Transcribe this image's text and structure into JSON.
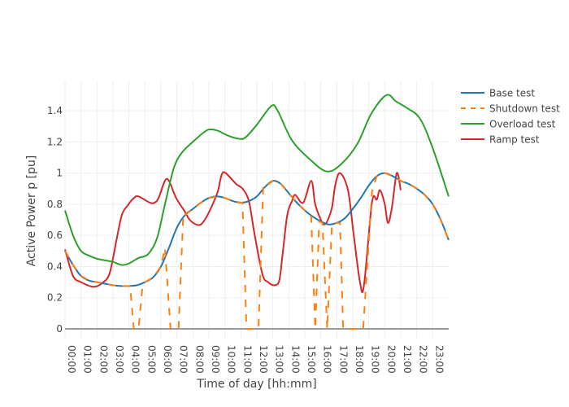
{
  "chart_data": {
    "type": "line",
    "xlabel": "Time of day [hh:mm]",
    "ylabel": "Active Power p [pu]",
    "xlim": [
      0,
      24
    ],
    "ylim": [
      -0.07,
      1.55
    ],
    "xticks": [
      "00:00",
      "01:00",
      "02:00",
      "03:00",
      "04:00",
      "05:00",
      "06:00",
      "07:00",
      "08:00",
      "09:00",
      "10:00",
      "11:00",
      "12:00",
      "13:00",
      "14:00",
      "15:00",
      "16:00",
      "17:00",
      "18:00",
      "19:00",
      "20:00",
      "21:00",
      "22:00",
      "23:00"
    ],
    "yticks": [
      0,
      0.2,
      0.4,
      0.6,
      0.8,
      1,
      1.2,
      1.4
    ],
    "ytick_labels": [
      "0",
      "0.2",
      "0.4",
      "0.6",
      "0.8",
      "1",
      "1.2",
      "1.4"
    ],
    "grid": true,
    "legend_position": "right",
    "series": [
      {
        "name": "Base test",
        "color": "#1f77b4",
        "dash": "solid",
        "x": [
          0,
          0.5,
          1,
          1.5,
          2,
          2.5,
          3,
          3.5,
          4,
          4.5,
          5,
          5.5,
          6,
          6.5,
          7,
          7.5,
          8,
          8.5,
          9,
          9.5,
          10,
          10.5,
          11,
          11.5,
          12,
          12.5,
          13,
          13.5,
          14,
          14.5,
          15,
          15.5,
          16,
          16.5,
          17,
          17.5,
          18,
          18.5,
          19,
          19.5,
          20,
          20.5,
          21,
          21.5,
          22,
          22.5,
          23,
          23.5,
          24
        ],
        "y": [
          0.5,
          0.41,
          0.34,
          0.31,
          0.3,
          0.29,
          0.28,
          0.275,
          0.275,
          0.28,
          0.3,
          0.33,
          0.4,
          0.52,
          0.65,
          0.73,
          0.77,
          0.81,
          0.84,
          0.85,
          0.84,
          0.82,
          0.81,
          0.82,
          0.85,
          0.91,
          0.95,
          0.93,
          0.87,
          0.81,
          0.76,
          0.72,
          0.69,
          0.67,
          0.68,
          0.71,
          0.77,
          0.84,
          0.92,
          0.98,
          1.0,
          0.98,
          0.95,
          0.93,
          0.9,
          0.86,
          0.8,
          0.7,
          0.57
        ]
      },
      {
        "name": "Shutdown test",
        "color": "#ff7f0e",
        "dash": "dash",
        "x": [
          0,
          0.5,
          1,
          1.5,
          2,
          2.5,
          3,
          3.5,
          4,
          4.07,
          4.3,
          4.6,
          4.85,
          5,
          5.5,
          6,
          6.25,
          6.6,
          7.1,
          7.4,
          7.5,
          8,
          8.5,
          9,
          9.5,
          10,
          10.5,
          11,
          11.1,
          11.35,
          12.1,
          12.4,
          12.5,
          13,
          13.5,
          14,
          14.5,
          15,
          15.4,
          15.65,
          15.9,
          16.1,
          16.4,
          16.7,
          17,
          17.2,
          17.4,
          18.65,
          19.2,
          19.5,
          20,
          20.5,
          21,
          21.5,
          22,
          22.5,
          23,
          23.5,
          24
        ],
        "y": [
          0.5,
          0.41,
          0.34,
          0.31,
          0.3,
          0.29,
          0.28,
          0.275,
          0.275,
          0.275,
          0,
          0,
          0.28,
          0.3,
          0.33,
          0.4,
          0.52,
          0,
          0,
          0.74,
          0.73,
          0.77,
          0.81,
          0.84,
          0.85,
          0.84,
          0.82,
          0.81,
          0.81,
          0,
          0,
          0.92,
          0.91,
          0.95,
          0.93,
          0.87,
          0.81,
          0.76,
          0.72,
          0,
          0.69,
          0.68,
          0,
          0.68,
          0.68,
          0.68,
          0,
          0,
          0.88,
          0.98,
          1.0,
          0.98,
          0.95,
          0.93,
          0.9,
          0.86,
          0.8,
          0.7,
          0.57
        ]
      },
      {
        "name": "Overload test",
        "color": "#2ca02c",
        "dash": "solid",
        "x": [
          0,
          0.5,
          1,
          1.5,
          2,
          2.5,
          3,
          3.55,
          4,
          4.6,
          5.2,
          5.75,
          6.25,
          6.8,
          7.3,
          8.1,
          8.8,
          9.15,
          9.6,
          10.2,
          10.9,
          11.3,
          12,
          12.9,
          13.3,
          14.2,
          15.4,
          16.4,
          17.3,
          18.3,
          19.15,
          20.1,
          20.7,
          21.35,
          22.2,
          23,
          24
        ],
        "y": [
          0.76,
          0.6,
          0.5,
          0.47,
          0.45,
          0.44,
          0.43,
          0.41,
          0.42,
          0.455,
          0.48,
          0.58,
          0.8,
          1.03,
          1.13,
          1.21,
          1.27,
          1.28,
          1.27,
          1.24,
          1.22,
          1.23,
          1.31,
          1.43,
          1.4,
          1.21,
          1.08,
          1.01,
          1.06,
          1.19,
          1.38,
          1.5,
          1.46,
          1.42,
          1.35,
          1.16,
          0.85
        ]
      },
      {
        "name": "Ramp test",
        "color": "#d62728",
        "dash": "solid",
        "x": [
          0,
          0.5,
          1,
          1.8,
          2.4,
          2.8,
          3.2,
          3.55,
          3.9,
          4.3,
          4.6,
          5.3,
          5.6,
          5.85,
          6.25,
          6.5,
          6.95,
          7.45,
          7.8,
          8.2,
          8.5,
          8.8,
          9.15,
          9.55,
          9.8,
          10.05,
          10.7,
          11.1,
          11.5,
          11.85,
          12.35,
          12.7,
          13.1,
          13.4,
          13.6,
          13.9,
          14.2,
          14.4,
          14.9,
          15.4,
          15.65,
          16.0,
          16.2,
          16.4,
          16.7,
          16.9,
          17.2,
          17.7,
          18.05,
          18.45,
          18.7,
          19.2,
          19.5,
          19.7,
          20.0,
          20.2,
          20.45,
          20.75,
          21.0
        ],
        "y": [
          0.51,
          0.34,
          0.3,
          0.27,
          0.3,
          0.36,
          0.56,
          0.73,
          0.79,
          0.84,
          0.85,
          0.81,
          0.81,
          0.84,
          0.95,
          0.95,
          0.84,
          0.76,
          0.7,
          0.67,
          0.67,
          0.71,
          0.78,
          0.88,
          0.99,
          1.0,
          0.93,
          0.9,
          0.82,
          0.61,
          0.35,
          0.3,
          0.28,
          0.31,
          0.47,
          0.73,
          0.82,
          0.86,
          0.81,
          0.95,
          0.8,
          0.7,
          0.67,
          0.69,
          0.78,
          0.92,
          1.0,
          0.89,
          0.61,
          0.3,
          0.28,
          0.81,
          0.83,
          0.89,
          0.8,
          0.68,
          0.78,
          1.0,
          0.89
        ]
      }
    ]
  }
}
